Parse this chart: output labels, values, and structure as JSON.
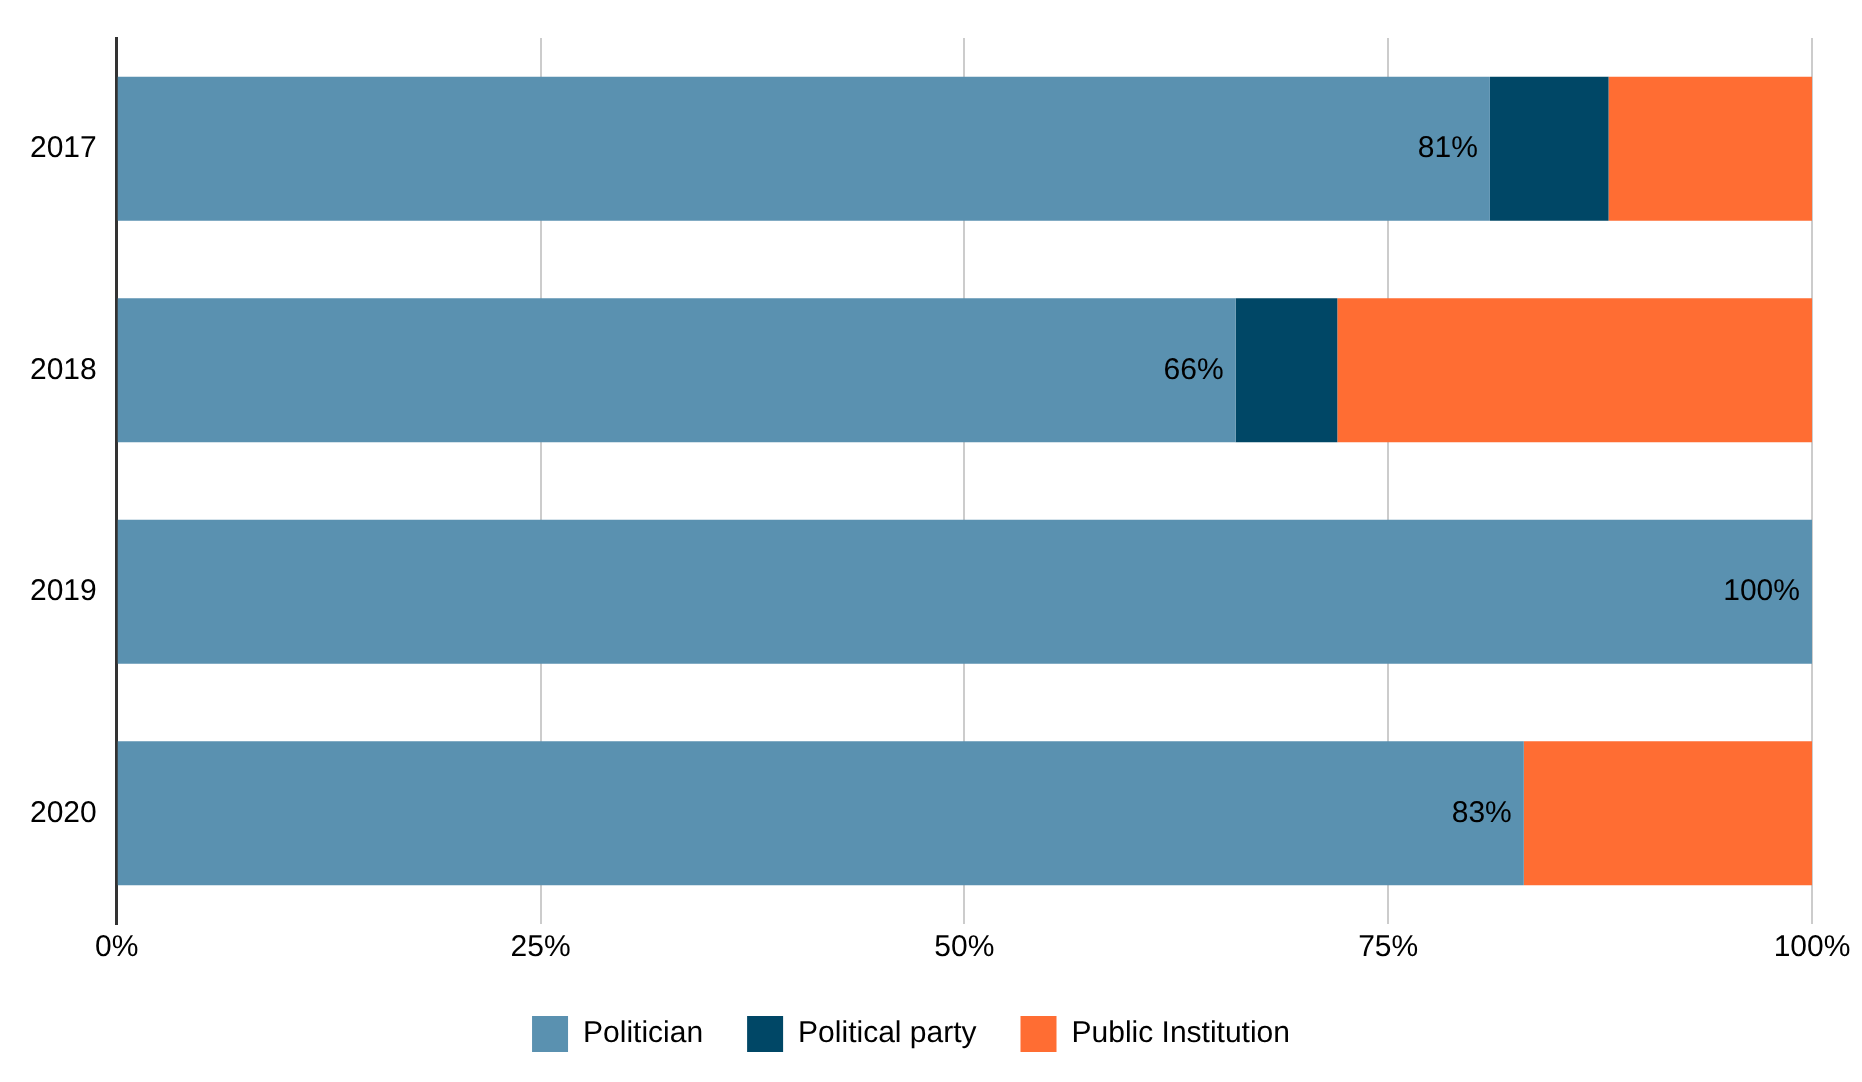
{
  "chart_data": {
    "type": "bar",
    "orientation": "horizontal",
    "stacked": true,
    "categories": [
      "2017",
      "2018",
      "2019",
      "2020"
    ],
    "series": [
      {
        "name": "Politician",
        "color": "#5a91b0",
        "values": [
          81,
          66,
          100,
          83
        ],
        "value_labels": [
          "81%",
          "66%",
          "100%",
          "83%"
        ]
      },
      {
        "name": "Political party",
        "color": "#004766",
        "values": [
          7,
          6,
          null,
          null
        ]
      },
      {
        "name": "Public Institution",
        "color": "#ff6d33",
        "values": [
          12,
          28,
          null,
          17
        ]
      }
    ],
    "xlim": [
      0,
      100
    ],
    "xticks": [
      {
        "value": 0,
        "label": "0%"
      },
      {
        "value": 25,
        "label": "25%"
      },
      {
        "value": 50,
        "label": "50%"
      },
      {
        "value": 75,
        "label": "75%"
      },
      {
        "value": 100,
        "label": "100%"
      }
    ],
    "grid": "x",
    "legend": "bottom"
  }
}
